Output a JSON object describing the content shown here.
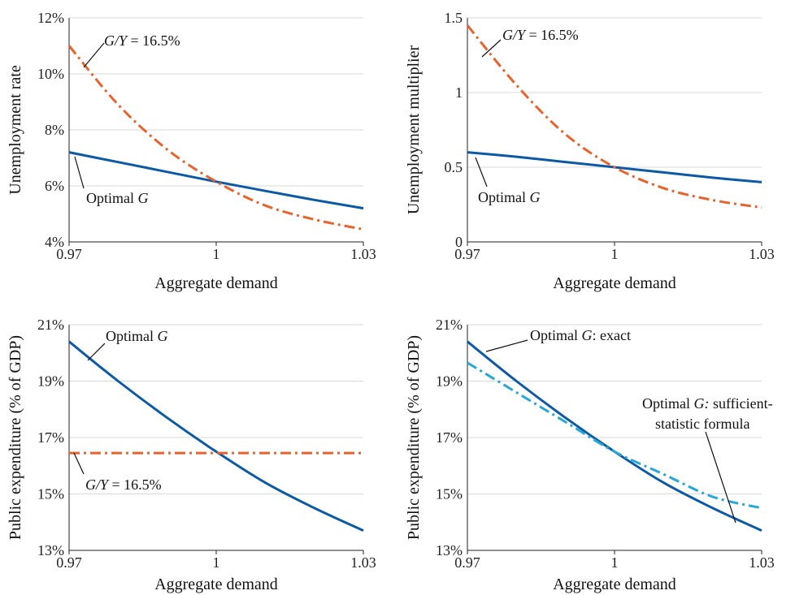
{
  "colors": {
    "blue": "#0c5aa6",
    "orange": "#e8622c",
    "cyan": "#27a6d8"
  },
  "chart_data": [
    {
      "type": "line",
      "xlabel": "Aggregate demand",
      "ylabel": "Unemployment rate",
      "xlim": [
        0.97,
        1.03
      ],
      "ylim": [
        4,
        12
      ],
      "xticks": [
        0.97,
        1,
        1.03
      ],
      "xtick_labels": [
        "0.97",
        "1",
        "1.03"
      ],
      "yticks": [
        4,
        6,
        8,
        10,
        12
      ],
      "ytick_labels": [
        "4%",
        "6%",
        "8%",
        "10%",
        "12%"
      ],
      "grid": "horizontal",
      "series": [
        {
          "name": "Optimal G",
          "style": "solid",
          "color": "blue",
          "x": [
            0.97,
            0.98,
            0.99,
            1.0,
            1.01,
            1.02,
            1.03
          ],
          "values": [
            7.2,
            6.85,
            6.5,
            6.15,
            5.82,
            5.5,
            5.2
          ]
        },
        {
          "name": "G/Y = 16.5%",
          "style": "dashdot",
          "color": "orange",
          "x": [
            0.97,
            0.98,
            0.99,
            1.0,
            1.01,
            1.02,
            1.03
          ],
          "values": [
            11.0,
            8.9,
            7.3,
            6.15,
            5.3,
            4.8,
            4.45
          ]
        }
      ],
      "annotations": [
        {
          "prefix": "G/Y",
          "suffix": " = 16.5%"
        },
        {
          "prefix": "Optimal ",
          "suffix": "G"
        }
      ]
    },
    {
      "type": "line",
      "xlabel": "Aggregate demand",
      "ylabel": "Unemployment multiplier",
      "xlim": [
        0.97,
        1.03
      ],
      "ylim": [
        0,
        1.5
      ],
      "xticks": [
        0.97,
        1,
        1.03
      ],
      "xtick_labels": [
        "0.97",
        "1",
        "1.03"
      ],
      "yticks": [
        0,
        0.5,
        1,
        1.5
      ],
      "ytick_labels": [
        "0",
        "0.5",
        "1",
        "1.5"
      ],
      "grid": "horizontal",
      "series": [
        {
          "name": "Optimal G",
          "style": "solid",
          "color": "blue",
          "x": [
            0.97,
            0.98,
            0.99,
            1.0,
            1.01,
            1.02,
            1.03
          ],
          "values": [
            0.6,
            0.57,
            0.535,
            0.5,
            0.465,
            0.43,
            0.4
          ]
        },
        {
          "name": "G/Y = 16.5%",
          "style": "dashdot",
          "color": "orange",
          "x": [
            0.97,
            0.98,
            0.99,
            1.0,
            1.01,
            1.02,
            1.03
          ],
          "values": [
            1.45,
            1.05,
            0.72,
            0.5,
            0.36,
            0.28,
            0.23
          ]
        }
      ],
      "annotations": [
        {
          "prefix": "G/Y",
          "suffix": " = 16.5%"
        },
        {
          "prefix": "Optimal ",
          "suffix": "G"
        }
      ]
    },
    {
      "type": "line",
      "xlabel": "Aggregate demand",
      "ylabel": "Public expenditure (% of GDP)",
      "xlim": [
        0.97,
        1.03
      ],
      "ylim": [
        13,
        21
      ],
      "xticks": [
        0.97,
        1,
        1.03
      ],
      "xtick_labels": [
        "0.97",
        "1",
        "1.03"
      ],
      "yticks": [
        13,
        15,
        17,
        19,
        21
      ],
      "ytick_labels": [
        "13%",
        "15%",
        "17%",
        "19%",
        "21%"
      ],
      "grid": "horizontal",
      "series": [
        {
          "name": "Optimal G",
          "style": "solid",
          "color": "blue",
          "x": [
            0.97,
            0.98,
            0.99,
            1.0,
            1.01,
            1.02,
            1.03
          ],
          "values": [
            20.4,
            19.0,
            17.7,
            16.5,
            15.4,
            14.5,
            13.7
          ]
        },
        {
          "name": "G/Y = 16.5%",
          "style": "dashdot",
          "color": "orange",
          "x": [
            0.97,
            1.03
          ],
          "values": [
            16.45,
            16.45
          ]
        }
      ],
      "annotations": [
        {
          "prefix": "Optimal ",
          "suffix": "G"
        },
        {
          "prefix": "G/Y",
          "suffix": " = 16.5%"
        }
      ]
    },
    {
      "type": "line",
      "xlabel": "Aggregate demand",
      "ylabel": "Public expenditure (% of GDP)",
      "xlim": [
        0.97,
        1.03
      ],
      "ylim": [
        13,
        21
      ],
      "xticks": [
        0.97,
        1,
        1.03
      ],
      "xtick_labels": [
        "0.97",
        "1",
        "1.03"
      ],
      "yticks": [
        13,
        15,
        17,
        19,
        21
      ],
      "ytick_labels": [
        "13%",
        "15%",
        "17%",
        "19%",
        "21%"
      ],
      "grid": "horizontal",
      "series": [
        {
          "name": "Optimal G: exact",
          "style": "solid",
          "color": "blue",
          "x": [
            0.97,
            0.98,
            0.99,
            1.0,
            1.01,
            1.02,
            1.03
          ],
          "values": [
            20.4,
            19.0,
            17.7,
            16.5,
            15.4,
            14.5,
            13.7
          ]
        },
        {
          "name": "Optimal G: sufficient-statistic formula",
          "style": "dashdot",
          "color": "cyan",
          "x": [
            0.97,
            0.98,
            0.99,
            1.0,
            1.01,
            1.02,
            1.03
          ],
          "values": [
            19.65,
            18.6,
            17.55,
            16.5,
            15.7,
            14.9,
            14.5
          ]
        }
      ],
      "annotations": [
        {
          "prefix": "Optimal ",
          "italic": "G",
          "suffix": ": exact"
        },
        {
          "prefix": "Optimal ",
          "italic": "G:",
          "suffix": " sufficient-"
        },
        {
          "text": "statistic formula"
        }
      ]
    }
  ]
}
